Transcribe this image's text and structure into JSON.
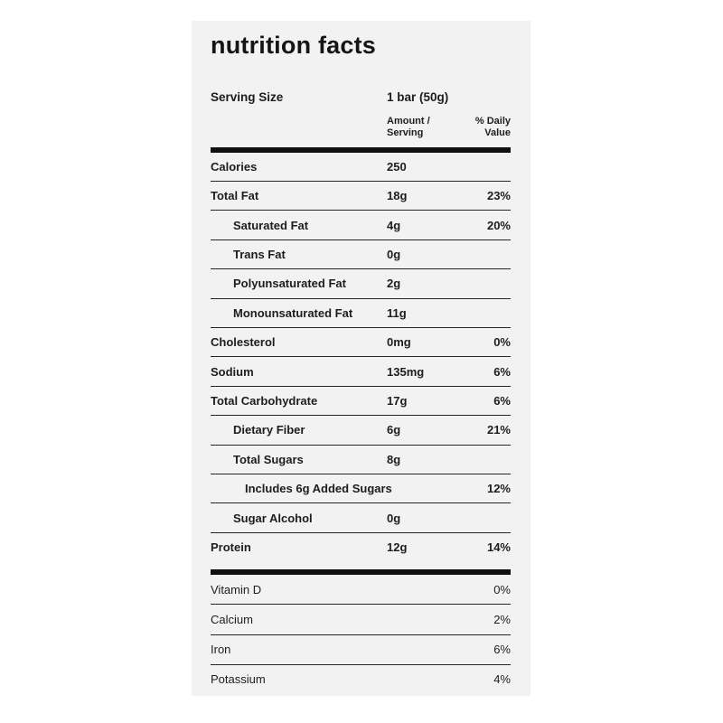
{
  "page": {
    "background": "#ffffff",
    "card_background": "#f2f2f2",
    "text_color": "#1d1d1d",
    "rule_color": "#262626",
    "bar_color": "#101010"
  },
  "header": {
    "title": "nutrition facts"
  },
  "serving": {
    "label": "Serving Size",
    "value": "1 bar (50g)"
  },
  "columns": {
    "amount_line1": "Amount /",
    "amount_line2": "Serving",
    "daily_line1": "% Daily",
    "daily_line2": "Value"
  },
  "table": {
    "main_rows": [
      {
        "label": "Calories",
        "amount": "250",
        "pct": "",
        "level": 0,
        "emphasis": "main"
      },
      {
        "label": "Total Fat",
        "amount": "18g",
        "pct": "23%",
        "level": 0,
        "emphasis": "main"
      },
      {
        "label": "Saturated Fat",
        "amount": "4g",
        "pct": "20%",
        "level": 1,
        "emphasis": "sub"
      },
      {
        "label": "Trans Fat",
        "amount": "0g",
        "pct": "",
        "level": 1,
        "emphasis": "sub"
      },
      {
        "label": "Polyunsaturated Fat",
        "amount": "2g",
        "pct": "",
        "level": 1,
        "emphasis": "sub"
      },
      {
        "label": "Monounsaturated Fat",
        "amount": "11g",
        "pct": "",
        "level": 1,
        "emphasis": "sub"
      },
      {
        "label": "Cholesterol",
        "amount": "0mg",
        "pct": "0%",
        "level": 0,
        "emphasis": "main"
      },
      {
        "label": "Sodium",
        "amount": "135mg",
        "pct": "6%",
        "level": 0,
        "emphasis": "main"
      },
      {
        "label": "Total Carbohydrate",
        "amount": "17g",
        "pct": "6%",
        "level": 0,
        "emphasis": "main"
      },
      {
        "label": "Dietary Fiber",
        "amount": "6g",
        "pct": "21%",
        "level": 1,
        "emphasis": "sub"
      },
      {
        "label": "Total Sugars",
        "amount": "8g",
        "pct": "",
        "level": 1,
        "emphasis": "sub"
      },
      {
        "label": "Includes 6g Added Sugars",
        "amount": "",
        "pct": "12%",
        "level": 2,
        "emphasis": "sub"
      },
      {
        "label": "Sugar Alcohol",
        "amount": "0g",
        "pct": "",
        "level": 1,
        "emphasis": "sub"
      },
      {
        "label": "Protein",
        "amount": "12g",
        "pct": "14%",
        "level": 0,
        "emphasis": "main"
      }
    ],
    "vitamin_rows": [
      {
        "label": "Vitamin D",
        "amount": "",
        "pct": "0%",
        "level": 0,
        "emphasis": "reg"
      },
      {
        "label": "Calcium",
        "amount": "",
        "pct": "2%",
        "level": 0,
        "emphasis": "reg"
      },
      {
        "label": "Iron",
        "amount": "",
        "pct": "6%",
        "level": 0,
        "emphasis": "reg"
      },
      {
        "label": "Potassium",
        "amount": "",
        "pct": "4%",
        "level": 0,
        "emphasis": "reg"
      }
    ]
  }
}
